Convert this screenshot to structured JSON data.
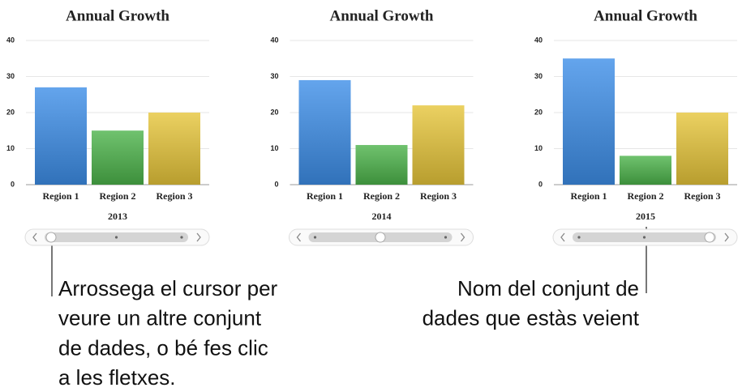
{
  "chart_data": [
    {
      "type": "bar",
      "title": "Annual Growth",
      "dataset": "2013",
      "categories": [
        "Region 1",
        "Region 2",
        "Region 3"
      ],
      "values": [
        27,
        15,
        20
      ],
      "colors": [
        "#3d8ee8",
        "#4cb34a",
        "#e6c53a"
      ],
      "ylim": [
        0,
        40
      ],
      "yticks": [
        0,
        10,
        20,
        30,
        40
      ],
      "grid": true
    },
    {
      "type": "bar",
      "title": "Annual Growth",
      "dataset": "2014",
      "categories": [
        "Region 1",
        "Region 2",
        "Region 3"
      ],
      "values": [
        29,
        11,
        22
      ],
      "colors": [
        "#3d8ee8",
        "#4cb34a",
        "#e6c53a"
      ],
      "ylim": [
        0,
        40
      ],
      "yticks": [
        0,
        10,
        20,
        30,
        40
      ],
      "grid": true
    },
    {
      "type": "bar",
      "title": "Annual Growth",
      "dataset": "2015",
      "categories": [
        "Region 1",
        "Region 2",
        "Region 3"
      ],
      "values": [
        35,
        8,
        20
      ],
      "colors": [
        "#3d8ee8",
        "#4cb34a",
        "#e6c53a"
      ],
      "ylim": [
        0,
        40
      ],
      "yticks": [
        0,
        10,
        20,
        30,
        40
      ],
      "grid": true
    }
  ],
  "annotations": [
    {
      "lines": [
        "Arrossega el cursor per",
        "veure un altre conjunt",
        "de dades, o bé fes clic",
        "a les fletxes."
      ]
    },
    {
      "lines": [
        "Nom del conjunt de",
        "dades que estàs veient"
      ]
    }
  ]
}
